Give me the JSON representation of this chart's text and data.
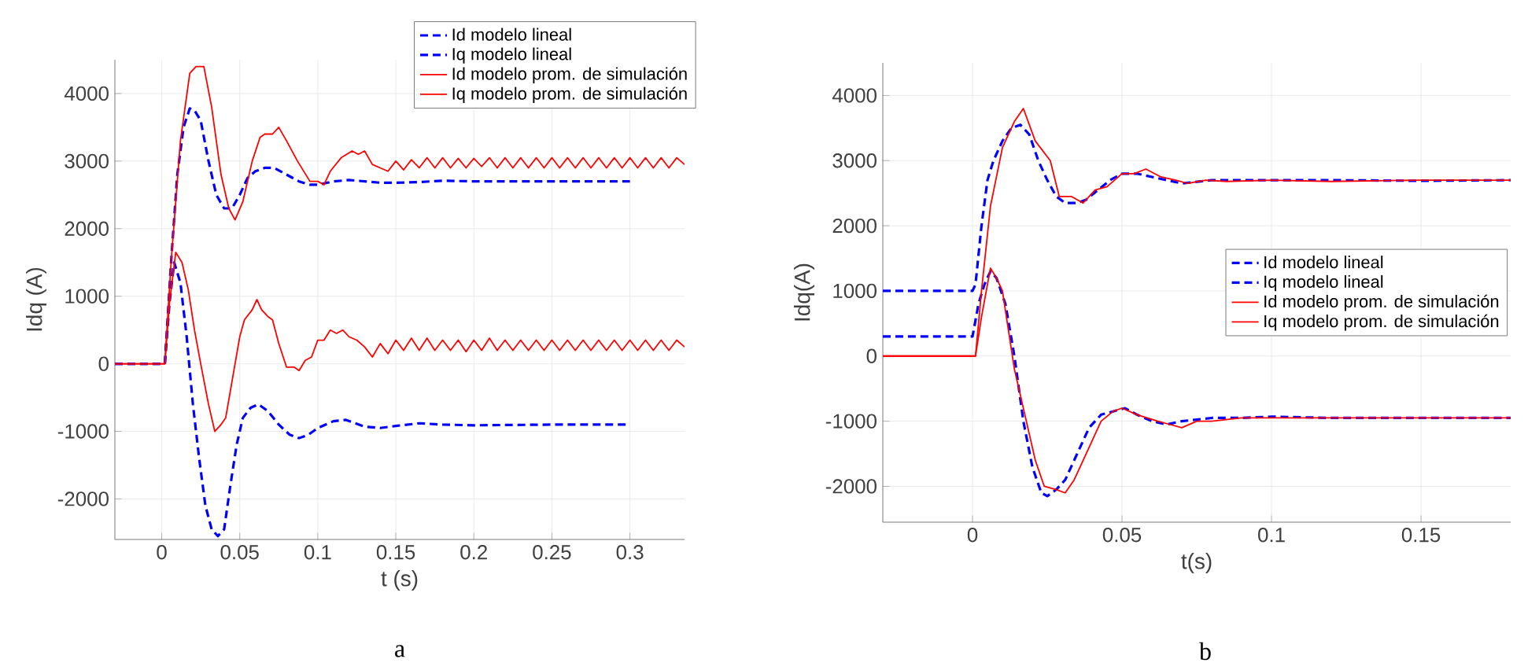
{
  "chart_data": [
    {
      "type": "line",
      "xlabel": "t (s)",
      "ylabel": "Idq (A)",
      "xlim": [
        -0.03,
        0.335
      ],
      "ylim": [
        -2600,
        4500
      ],
      "xticks": [
        0,
        0.05,
        0.1,
        0.15,
        0.2,
        0.25,
        0.3
      ],
      "yticks": [
        -2000,
        -1000,
        0,
        1000,
        2000,
        3000,
        4000
      ],
      "grid": true,
      "legend": "top right",
      "annotations": [
        "a"
      ],
      "series": [
        {
          "name": "Id modelo lineal",
          "color": "#0000ff",
          "line_style": "dashed",
          "x": [
            -0.03,
            0.002,
            0.006,
            0.01,
            0.014,
            0.018,
            0.021,
            0.025,
            0.03,
            0.035,
            0.04,
            0.045,
            0.05,
            0.055,
            0.06,
            0.066,
            0.072,
            0.08,
            0.088,
            0.095,
            0.1,
            0.11,
            0.12,
            0.13,
            0.14,
            0.15,
            0.165,
            0.18,
            0.2,
            0.22,
            0.25,
            0.3
          ],
          "values": [
            0,
            0,
            1500,
            2800,
            3500,
            3780,
            3750,
            3600,
            3000,
            2500,
            2300,
            2300,
            2500,
            2750,
            2850,
            2900,
            2900,
            2800,
            2700,
            2650,
            2650,
            2700,
            2720,
            2700,
            2680,
            2680,
            2690,
            2710,
            2700,
            2700,
            2700,
            2700
          ]
        },
        {
          "name": "Iq modelo lineal",
          "color": "#0000ff",
          "line_style": "dashed",
          "x": [
            -0.03,
            0.002,
            0.005,
            0.008,
            0.012,
            0.016,
            0.02,
            0.024,
            0.028,
            0.032,
            0.036,
            0.04,
            0.044,
            0.048,
            0.052,
            0.057,
            0.062,
            0.068,
            0.075,
            0.082,
            0.088,
            0.094,
            0.1,
            0.11,
            0.118,
            0.13,
            0.14,
            0.15,
            0.165,
            0.18,
            0.2,
            0.25,
            0.3
          ],
          "values": [
            0,
            0,
            900,
            1500,
            1200,
            400,
            -600,
            -1400,
            -2100,
            -2450,
            -2550,
            -2450,
            -1800,
            -1200,
            -800,
            -650,
            -600,
            -700,
            -900,
            -1050,
            -1100,
            -1050,
            -950,
            -850,
            -830,
            -930,
            -950,
            -920,
            -880,
            -900,
            -910,
            -900,
            -900
          ]
        },
        {
          "name": "Id modelo prom. de simulación",
          "color": "#ff0000",
          "line_style": "solid",
          "x": [
            -0.03,
            0.002,
            0.006,
            0.012,
            0.018,
            0.022,
            0.027,
            0.032,
            0.038,
            0.043,
            0.047,
            0.052,
            0.058,
            0.063,
            0.066,
            0.071,
            0.075,
            0.08,
            0.087,
            0.095,
            0.1,
            0.104,
            0.108,
            0.115,
            0.122,
            0.126,
            0.13,
            0.135,
            0.14,
            0.145,
            0.15,
            0.155,
            0.16,
            0.165,
            0.17,
            0.175,
            0.18,
            0.185,
            0.19,
            0.195,
            0.2,
            0.205,
            0.21,
            0.215,
            0.22,
            0.225,
            0.23,
            0.235,
            0.24,
            0.245,
            0.25,
            0.255,
            0.26,
            0.265,
            0.27,
            0.275,
            0.28,
            0.285,
            0.29,
            0.295,
            0.3,
            0.305,
            0.31,
            0.315,
            0.32,
            0.325,
            0.33,
            0.335
          ],
          "values": [
            0,
            0,
            1500,
            3300,
            4300,
            4400,
            4400,
            3800,
            2800,
            2300,
            2130,
            2400,
            3000,
            3350,
            3400,
            3400,
            3500,
            3300,
            3000,
            2700,
            2700,
            2650,
            2850,
            3050,
            3150,
            3100,
            3150,
            2950,
            2900,
            2850,
            3000,
            2870,
            3020,
            2900,
            3050,
            2900,
            3050,
            2900,
            3040,
            2900,
            3040,
            2920,
            3050,
            2900,
            3050,
            2900,
            3050,
            2900,
            3050,
            2900,
            3050,
            2900,
            3050,
            2900,
            3050,
            2900,
            3050,
            2900,
            3050,
            2900,
            3050,
            2900,
            3050,
            2900,
            3050,
            2900,
            3050,
            2950
          ]
        },
        {
          "name": "Iq modelo prom. de simulación",
          "color": "#ff0000",
          "line_style": "solid",
          "x": [
            -0.03,
            0.002,
            0.005,
            0.009,
            0.013,
            0.017,
            0.021,
            0.025,
            0.03,
            0.034,
            0.038,
            0.041,
            0.044,
            0.047,
            0.05,
            0.053,
            0.058,
            0.061,
            0.064,
            0.068,
            0.071,
            0.075,
            0.08,
            0.085,
            0.088,
            0.092,
            0.096,
            0.1,
            0.104,
            0.108,
            0.112,
            0.116,
            0.12,
            0.125,
            0.13,
            0.135,
            0.14,
            0.145,
            0.15,
            0.155,
            0.16,
            0.165,
            0.17,
            0.175,
            0.18,
            0.185,
            0.19,
            0.195,
            0.2,
            0.205,
            0.21,
            0.215,
            0.22,
            0.225,
            0.23,
            0.235,
            0.24,
            0.245,
            0.25,
            0.255,
            0.26,
            0.265,
            0.27,
            0.275,
            0.28,
            0.285,
            0.29,
            0.295,
            0.3,
            0.305,
            0.31,
            0.315,
            0.32,
            0.325,
            0.33,
            0.335
          ],
          "values": [
            0,
            0,
            900,
            1650,
            1500,
            1100,
            500,
            0,
            -600,
            -1000,
            -900,
            -800,
            -400,
            0,
            400,
            650,
            800,
            950,
            800,
            700,
            650,
            300,
            -50,
            -50,
            -100,
            50,
            100,
            350,
            350,
            500,
            450,
            500,
            400,
            350,
            250,
            100,
            300,
            150,
            350,
            200,
            380,
            200,
            380,
            200,
            350,
            200,
            350,
            180,
            350,
            200,
            380,
            200,
            350,
            200,
            350,
            200,
            350,
            200,
            350,
            200,
            350,
            200,
            350,
            200,
            350,
            200,
            350,
            200,
            350,
            200,
            350,
            200,
            350,
            200,
            350,
            250
          ]
        }
      ]
    },
    {
      "type": "line",
      "xlabel": "t(s)",
      "ylabel": "Idq(A)",
      "xlim": [
        -0.03,
        0.18
      ],
      "ylim": [
        -2550,
        4500
      ],
      "xticks": [
        0,
        0.05,
        0.1,
        0.15
      ],
      "yticks": [
        -2000,
        -1000,
        0,
        1000,
        2000,
        3000,
        4000
      ],
      "grid": true,
      "legend": "right",
      "annotations": [
        "b"
      ],
      "series": [
        {
          "name": "Id modelo lineal",
          "color": "#0000ff",
          "line_style": "dashed",
          "x": [
            -0.03,
            0,
            0.001,
            0.003,
            0.005,
            0.007,
            0.01,
            0.013,
            0.016,
            0.019,
            0.022,
            0.025,
            0.028,
            0.031,
            0.035,
            0.038,
            0.042,
            0.046,
            0.05,
            0.055,
            0.06,
            0.065,
            0.07,
            0.08,
            0.09,
            0.1,
            0.12,
            0.15,
            0.18
          ],
          "values": [
            1000,
            1000,
            1100,
            2000,
            2700,
            3000,
            3300,
            3500,
            3550,
            3400,
            3000,
            2700,
            2450,
            2350,
            2350,
            2400,
            2550,
            2700,
            2800,
            2800,
            2750,
            2700,
            2650,
            2700,
            2700,
            2700,
            2700,
            2690,
            2700
          ]
        },
        {
          "name": "Iq modelo lineal",
          "color": "#0000ff",
          "line_style": "dashed",
          "x": [
            -0.03,
            0,
            0.002,
            0.004,
            0.006,
            0.008,
            0.011,
            0.014,
            0.017,
            0.02,
            0.023,
            0.025,
            0.028,
            0.031,
            0.035,
            0.039,
            0.043,
            0.047,
            0.051,
            0.055,
            0.06,
            0.065,
            0.07,
            0.08,
            0.09,
            0.1,
            0.12,
            0.15,
            0.18
          ],
          "values": [
            300,
            300,
            800,
            1100,
            1300,
            1200,
            800,
            0,
            -1000,
            -1700,
            -2100,
            -2150,
            -2050,
            -1900,
            -1500,
            -1100,
            -900,
            -850,
            -800,
            -900,
            -1000,
            -1050,
            -1000,
            -950,
            -950,
            -930,
            -950,
            -950,
            -950
          ]
        },
        {
          "name": "Id modelo prom. de simulación",
          "color": "#ff0000",
          "line_style": "solid",
          "x": [
            -0.03,
            0.001,
            0.003,
            0.006,
            0.01,
            0.014,
            0.017,
            0.021,
            0.026,
            0.029,
            0.033,
            0.037,
            0.041,
            0.045,
            0.05,
            0.054,
            0.058,
            0.063,
            0.068,
            0.072,
            0.078,
            0.085,
            0.1,
            0.12,
            0.15,
            0.18
          ],
          "values": [
            0,
            0,
            1000,
            2300,
            3200,
            3600,
            3800,
            3300,
            3000,
            2450,
            2450,
            2350,
            2550,
            2600,
            2800,
            2800,
            2870,
            2750,
            2700,
            2650,
            2700,
            2680,
            2700,
            2680,
            2700,
            2700
          ]
        },
        {
          "name": "Iq modelo prom. de simulación",
          "color": "#ff0000",
          "line_style": "solid",
          "x": [
            -0.03,
            0.001,
            0.003,
            0.006,
            0.008,
            0.01,
            0.014,
            0.018,
            0.021,
            0.024,
            0.028,
            0.031,
            0.034,
            0.037,
            0.04,
            0.043,
            0.047,
            0.05,
            0.055,
            0.062,
            0.066,
            0.07,
            0.075,
            0.08,
            0.09,
            0.1,
            0.12,
            0.15,
            0.18
          ],
          "values": [
            0,
            0,
            600,
            1350,
            1200,
            1000,
            -200,
            -1000,
            -1600,
            -2000,
            -2050,
            -2100,
            -1900,
            -1600,
            -1300,
            -1000,
            -850,
            -800,
            -900,
            -1000,
            -1050,
            -1100,
            -1000,
            -1000,
            -950,
            -950,
            -950,
            -950,
            -950
          ]
        }
      ]
    }
  ]
}
